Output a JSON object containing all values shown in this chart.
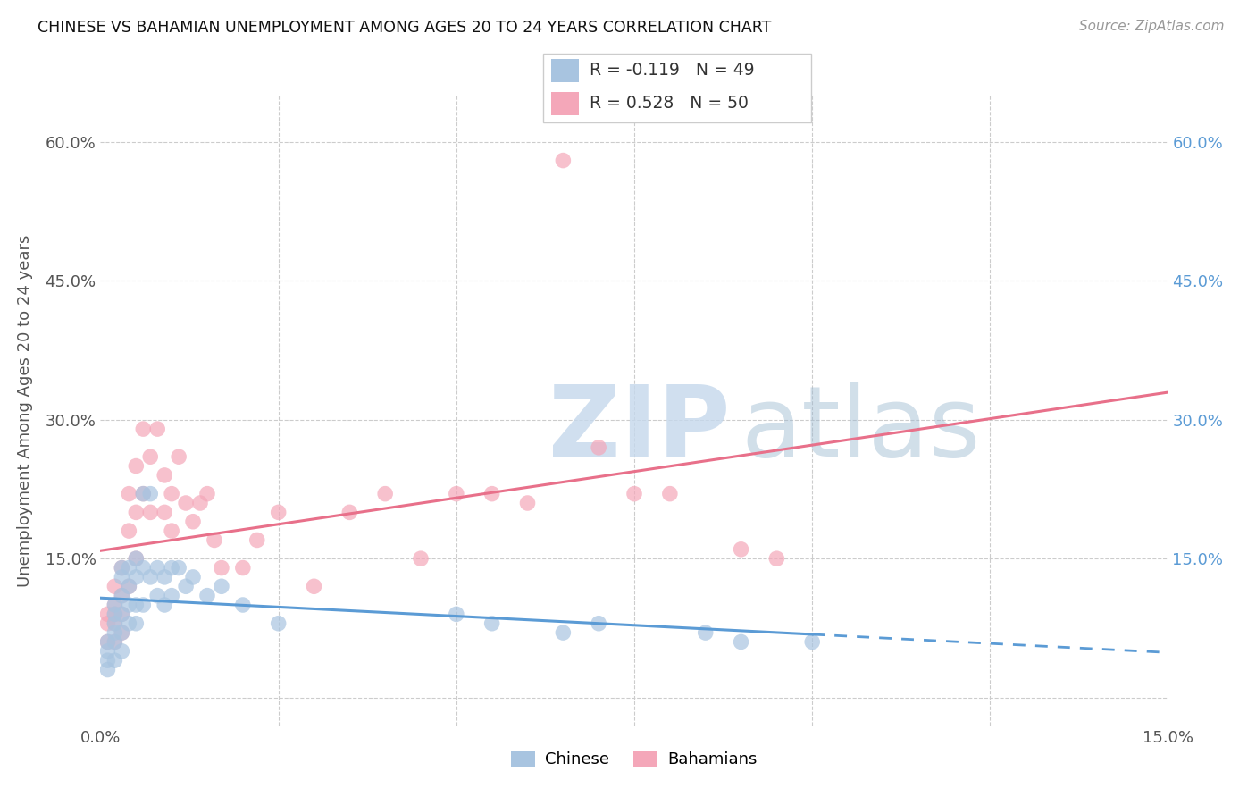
{
  "title": "CHINESE VS BAHAMIAN UNEMPLOYMENT AMONG AGES 20 TO 24 YEARS CORRELATION CHART",
  "source": "Source: ZipAtlas.com",
  "ylabel": "Unemployment Among Ages 20 to 24 years",
  "xlim": [
    0.0,
    0.15
  ],
  "ylim": [
    -0.03,
    0.65
  ],
  "chinese_color": "#a8c4e0",
  "bahamian_color": "#f4a7b9",
  "chinese_line_color": "#5b9bd5",
  "bahamian_line_color": "#e8708a",
  "chinese_R": -0.119,
  "chinese_N": 49,
  "bahamian_R": 0.528,
  "bahamian_N": 50,
  "chinese_scatter_x": [
    0.001,
    0.001,
    0.001,
    0.001,
    0.002,
    0.002,
    0.002,
    0.002,
    0.002,
    0.002,
    0.003,
    0.003,
    0.003,
    0.003,
    0.003,
    0.003,
    0.004,
    0.004,
    0.004,
    0.004,
    0.005,
    0.005,
    0.005,
    0.005,
    0.006,
    0.006,
    0.006,
    0.007,
    0.007,
    0.008,
    0.008,
    0.009,
    0.009,
    0.01,
    0.01,
    0.011,
    0.012,
    0.013,
    0.015,
    0.017,
    0.02,
    0.025,
    0.05,
    0.055,
    0.065,
    0.07,
    0.085,
    0.09,
    0.1
  ],
  "chinese_scatter_y": [
    0.06,
    0.05,
    0.04,
    0.03,
    0.1,
    0.09,
    0.08,
    0.07,
    0.06,
    0.04,
    0.14,
    0.13,
    0.11,
    0.09,
    0.07,
    0.05,
    0.14,
    0.12,
    0.1,
    0.08,
    0.15,
    0.13,
    0.1,
    0.08,
    0.22,
    0.14,
    0.1,
    0.22,
    0.13,
    0.14,
    0.11,
    0.13,
    0.1,
    0.14,
    0.11,
    0.14,
    0.12,
    0.13,
    0.11,
    0.12,
    0.1,
    0.08,
    0.09,
    0.08,
    0.07,
    0.08,
    0.07,
    0.06,
    0.06
  ],
  "bahamian_scatter_x": [
    0.001,
    0.001,
    0.001,
    0.002,
    0.002,
    0.002,
    0.002,
    0.002,
    0.003,
    0.003,
    0.003,
    0.003,
    0.004,
    0.004,
    0.004,
    0.005,
    0.005,
    0.005,
    0.006,
    0.006,
    0.007,
    0.007,
    0.008,
    0.009,
    0.009,
    0.01,
    0.01,
    0.011,
    0.012,
    0.013,
    0.014,
    0.015,
    0.016,
    0.017,
    0.02,
    0.022,
    0.025,
    0.03,
    0.035,
    0.04,
    0.045,
    0.05,
    0.055,
    0.06,
    0.065,
    0.07,
    0.075,
    0.08,
    0.09,
    0.095
  ],
  "bahamian_scatter_y": [
    0.09,
    0.08,
    0.06,
    0.12,
    0.1,
    0.09,
    0.08,
    0.06,
    0.14,
    0.11,
    0.09,
    0.07,
    0.22,
    0.18,
    0.12,
    0.25,
    0.2,
    0.15,
    0.29,
    0.22,
    0.26,
    0.2,
    0.29,
    0.24,
    0.2,
    0.22,
    0.18,
    0.26,
    0.21,
    0.19,
    0.21,
    0.22,
    0.17,
    0.14,
    0.14,
    0.17,
    0.2,
    0.12,
    0.2,
    0.22,
    0.15,
    0.22,
    0.22,
    0.21,
    0.58,
    0.27,
    0.22,
    0.22,
    0.16,
    0.15
  ],
  "yticks": [
    0.0,
    0.15,
    0.3,
    0.45,
    0.6
  ],
  "ytick_labels_left": [
    "",
    "15.0%",
    "30.0%",
    "45.0%",
    "60.0%"
  ],
  "ytick_labels_right": [
    "",
    "15.0%",
    "30.0%",
    "45.0%",
    "60.0%"
  ]
}
